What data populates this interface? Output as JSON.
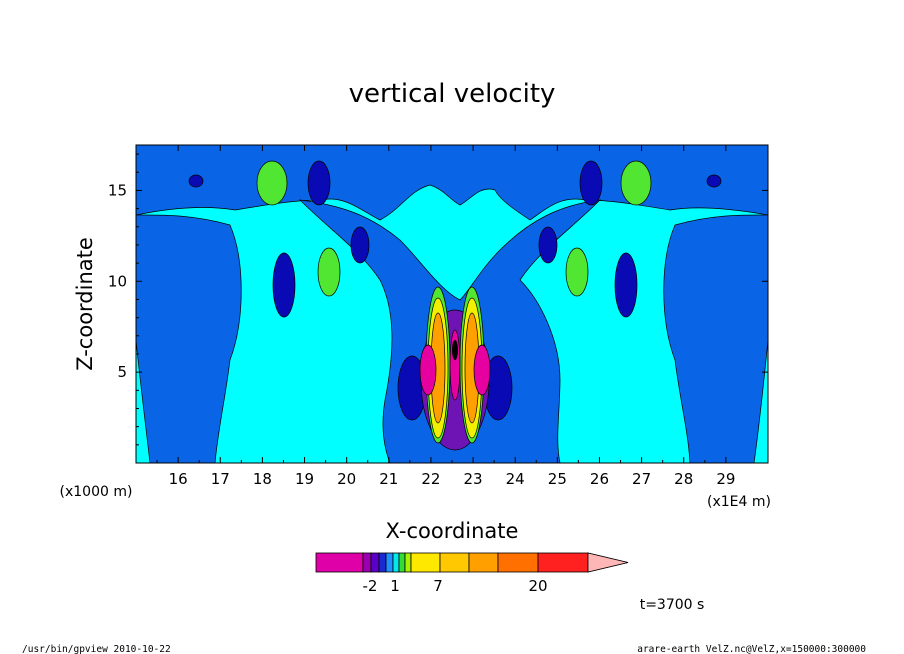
{
  "chart_data": {
    "type": "heatmap",
    "title": "vertical velocity",
    "xlabel": "X-coordinate",
    "ylabel": "Z-coordinate",
    "x_scale_label": "(x1E4 m)",
    "y_scale_label": "(x1000 m)",
    "x_ticks": [
      "16",
      "17",
      "18",
      "19",
      "20",
      "21",
      "22",
      "23",
      "24",
      "25",
      "26",
      "27",
      "28",
      "29"
    ],
    "y_ticks": [
      "5",
      "10",
      "15"
    ],
    "xlim": [
      15.0,
      30.0
    ],
    "ylim": [
      0.0,
      17.5
    ],
    "colorbar_labels": [
      {
        "text": "-2",
        "value": -2
      },
      {
        "text": "1",
        "value": 1
      },
      {
        "text": "7",
        "value": 7
      },
      {
        "text": "20",
        "value": 20
      }
    ],
    "colorbar_bins": [
      {
        "color": "#e000a8"
      },
      {
        "color": "#9a00b0"
      },
      {
        "color": "#5a00c8"
      },
      {
        "color": "#1a2ad0"
      },
      {
        "color": "#1e90ff"
      },
      {
        "color": "#00e8e8"
      },
      {
        "color": "#33dd33"
      },
      {
        "color": "#aaf000"
      },
      {
        "color": "#ffe800"
      },
      {
        "color": "#ffc800"
      },
      {
        "color": "#ffa000"
      },
      {
        "color": "#ff7000"
      },
      {
        "color": "#ff2020"
      },
      {
        "color": "#ff8080"
      },
      {
        "color": "#ffb6b6"
      }
    ],
    "field_colors": {
      "background": "#00ffff",
      "level_low": "#0a64e6",
      "level_lower": "#0a0ab4",
      "level_pos": "#50e632",
      "level_pos2": "#f0f000",
      "level_pos3": "#ffa000",
      "level_neg": "#e600a0",
      "level_neg2": "#6e14b4"
    },
    "grid": false,
    "legend": "bottom-center",
    "time_label": "t=3700 s"
  },
  "footer": {
    "left": "/usr/bin/gpview   2010-10-22",
    "right": "arare-earth_VelZ.nc@VelZ,x=150000:300000"
  }
}
